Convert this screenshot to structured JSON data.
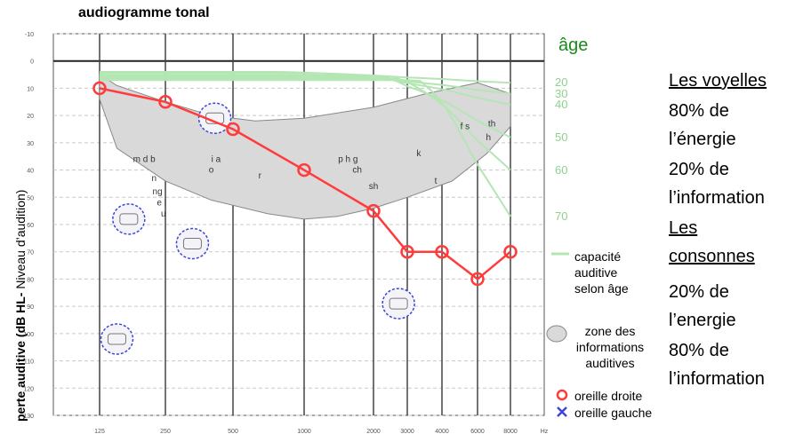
{
  "header": {
    "subtitle": "audiogramme tonal"
  },
  "chart_data": {
    "type": "line",
    "title": "",
    "subtitle": "audiogramme tonal",
    "ylabel_bold": "perte auditive (dB HL-",
    "ylabel_normal": " Niveau d’audition)",
    "xlabel": "",
    "x_unit": "Hz",
    "x": [
      125,
      250,
      500,
      1000,
      2000,
      3000,
      4000,
      6000,
      8000
    ],
    "x_tick_labels": [
      "125",
      "250",
      "500",
      "1000",
      "2000",
      "3000",
      "4000",
      "6000",
      "8000"
    ],
    "y_ticks": [
      -10,
      0,
      10,
      20,
      30,
      40,
      50,
      60,
      70,
      80,
      90,
      100,
      110,
      120,
      130
    ],
    "ylim": [
      -10,
      130
    ],
    "y_inverted": true,
    "grid": true,
    "series": [
      {
        "name": "oreille droite",
        "color": "#ff3b3b",
        "marker": "circle",
        "values": [
          10,
          15,
          25,
          40,
          55,
          70,
          70,
          80,
          70
        ]
      }
    ],
    "speech_sounds": [
      {
        "text": "m d b",
        "x": 200,
        "y": 37
      },
      {
        "text": "n",
        "x": 222,
        "y": 44
      },
      {
        "text": "ng",
        "x": 230,
        "y": 49
      },
      {
        "text": "e l",
        "x": 240,
        "y": 53
      },
      {
        "text": "u",
        "x": 245,
        "y": 57
      },
      {
        "text": "i a",
        "x": 420,
        "y": 37
      },
      {
        "text": "o",
        "x": 400,
        "y": 41
      },
      {
        "text": "r",
        "x": 650,
        "y": 43
      },
      {
        "text": "p h g",
        "x": 1550,
        "y": 37
      },
      {
        "text": "ch",
        "x": 1700,
        "y": 41
      },
      {
        "text": "sh",
        "x": 2000,
        "y": 47
      },
      {
        "text": "k",
        "x": 3300,
        "y": 35
      },
      {
        "text": "f s",
        "x": 5200,
        "y": 25
      },
      {
        "text": "th",
        "x": 6800,
        "y": 24
      },
      {
        "text": "h",
        "x": 6600,
        "y": 29
      },
      {
        "text": "t",
        "x": 3800,
        "y": 45
      }
    ],
    "age_title": "âge",
    "age_labels": [
      {
        "text": "20",
        "db": 8
      },
      {
        "text": "30",
        "db": 12
      },
      {
        "text": "40",
        "db": 16
      },
      {
        "text": "50",
        "db": 28
      },
      {
        "text": "60",
        "db": 40
      },
      {
        "text": "70",
        "db": 57
      }
    ],
    "legend": [
      {
        "key": "age",
        "lines": [
          "capacité",
          "auditive",
          "selon âge"
        ]
      },
      {
        "key": "zone",
        "lines": [
          "zone des",
          "informations",
          "auditives"
        ]
      },
      {
        "key": "right",
        "text": "oreille droite"
      },
      {
        "key": "left",
        "text": "oreille gauche"
      }
    ],
    "colors": {
      "zone_fill": "#d9d9d9",
      "age_curves": "#b4e6b4",
      "icon_circle": "#3b45d6",
      "right_ear": "#ff3b3b",
      "left_ear": "#3b45d6"
    }
  },
  "side_panel": {
    "voyelles_title": "Les voyelles",
    "voyelles_energy_1": "80% de",
    "voyelles_energy_2": "l’énergie",
    "voyelles_info_1": "20% de",
    "voyelles_info_2": "l’information",
    "consonnes_title_1": "Les",
    "consonnes_title_2": "consonnes",
    "consonnes_energy_1": "20% de",
    "consonnes_energy_2": "l’energie",
    "consonnes_info_1": "80% de",
    "consonnes_info_2": "l’information"
  }
}
